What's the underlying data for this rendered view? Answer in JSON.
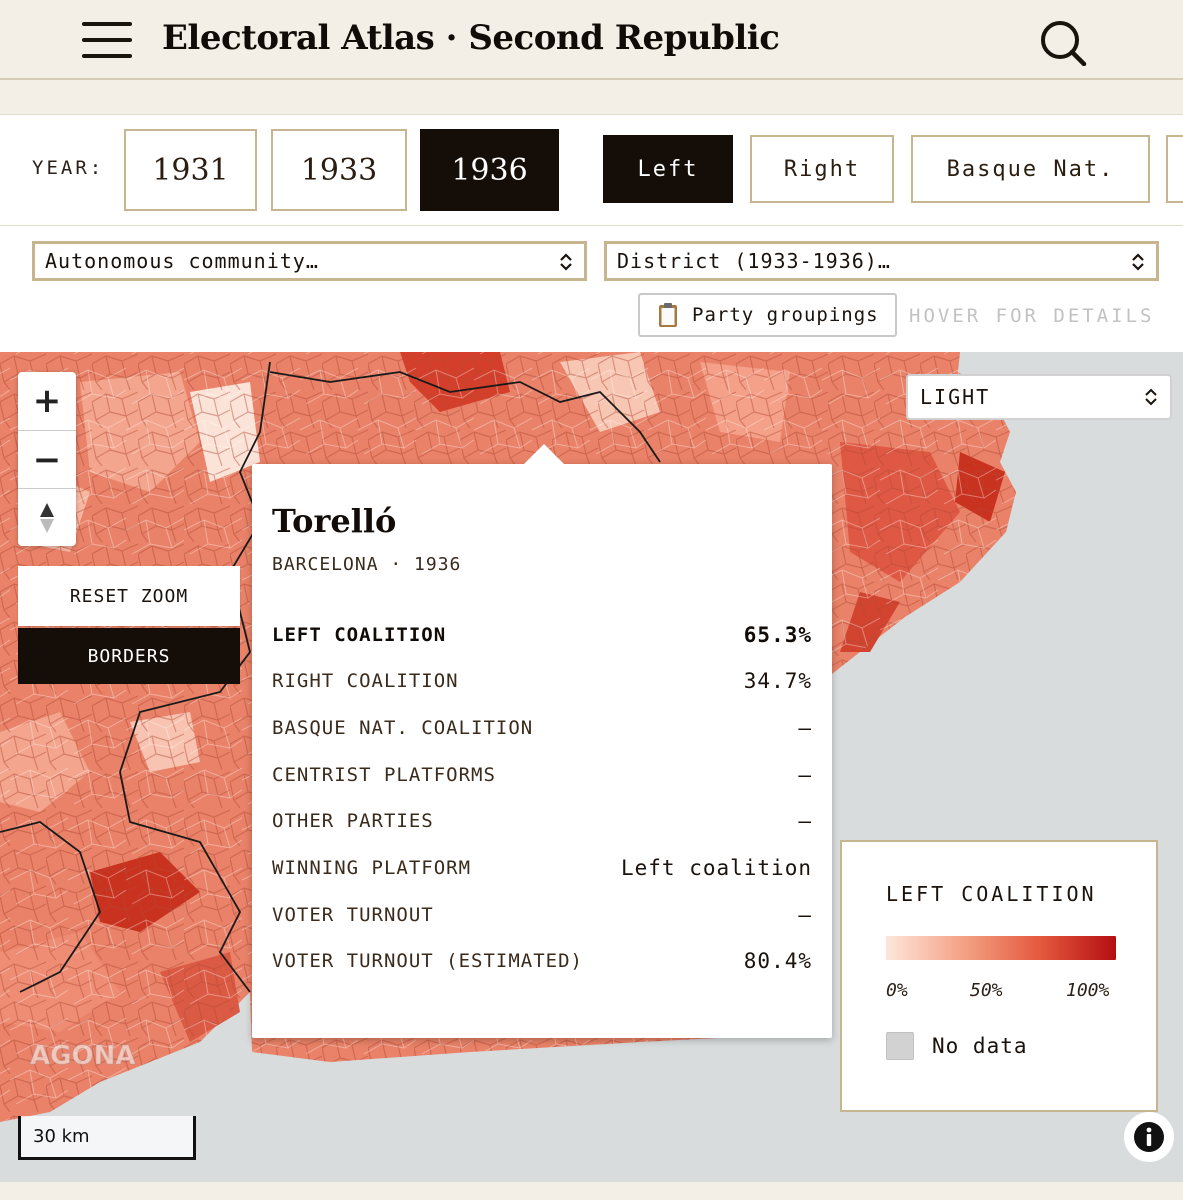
{
  "header": {
    "title": "Electoral Atlas · Second Republic",
    "menu_icon": "hamburger-menu-icon",
    "search_icon": "search-icon"
  },
  "controls": {
    "year_label": "YEAR:",
    "years": [
      {
        "label": "1931",
        "active": false
      },
      {
        "label": "1933",
        "active": false
      },
      {
        "label": "1936",
        "active": true
      }
    ],
    "coalitions": [
      {
        "label": "Left",
        "active": true
      },
      {
        "label": "Right",
        "active": false
      },
      {
        "label": "Basque Nat.",
        "active": false
      }
    ],
    "autonomous_select": "Autonomous community…",
    "district_select": "District (1933-1936)…",
    "party_groupings": "Party groupings",
    "hover_hint": "HOVER FOR DETAILS"
  },
  "map": {
    "zoom_in": "+",
    "zoom_out": "−",
    "reset_zoom": "RESET ZOOM",
    "borders": "BORDERS",
    "style_select": "LIGHT",
    "watermark": "AGONA",
    "scale": "30 km",
    "info_icon": "info-icon"
  },
  "tooltip": {
    "title": "Torelló",
    "subtitle": "BARCELONA · 1936",
    "rows": [
      {
        "label": "LEFT COALITION",
        "value": "65.3%",
        "bold": true
      },
      {
        "label": "RIGHT COALITION",
        "value": "34.7%"
      },
      {
        "label": "BASQUE NAT. COALITION",
        "value": "—"
      },
      {
        "label": "CENTRIST PLATFORMS",
        "value": "—"
      },
      {
        "label": "OTHER PARTIES",
        "value": "—"
      },
      {
        "label": "WINNING PLATFORM",
        "value": "Left coalition"
      },
      {
        "label": "VOTER TURNOUT",
        "value": "—"
      },
      {
        "label": "VOTER TURNOUT (ESTIMATED)",
        "value": "80.4%"
      }
    ]
  },
  "legend": {
    "title": "LEFT COALITION",
    "ticks": [
      "0%",
      "50%",
      "100%"
    ],
    "no_data": "No data",
    "colors": {
      "low": "#fde6dc",
      "mid": "#e45a3e",
      "high": "#b50e10",
      "no_data": "#d2d2d2"
    }
  }
}
